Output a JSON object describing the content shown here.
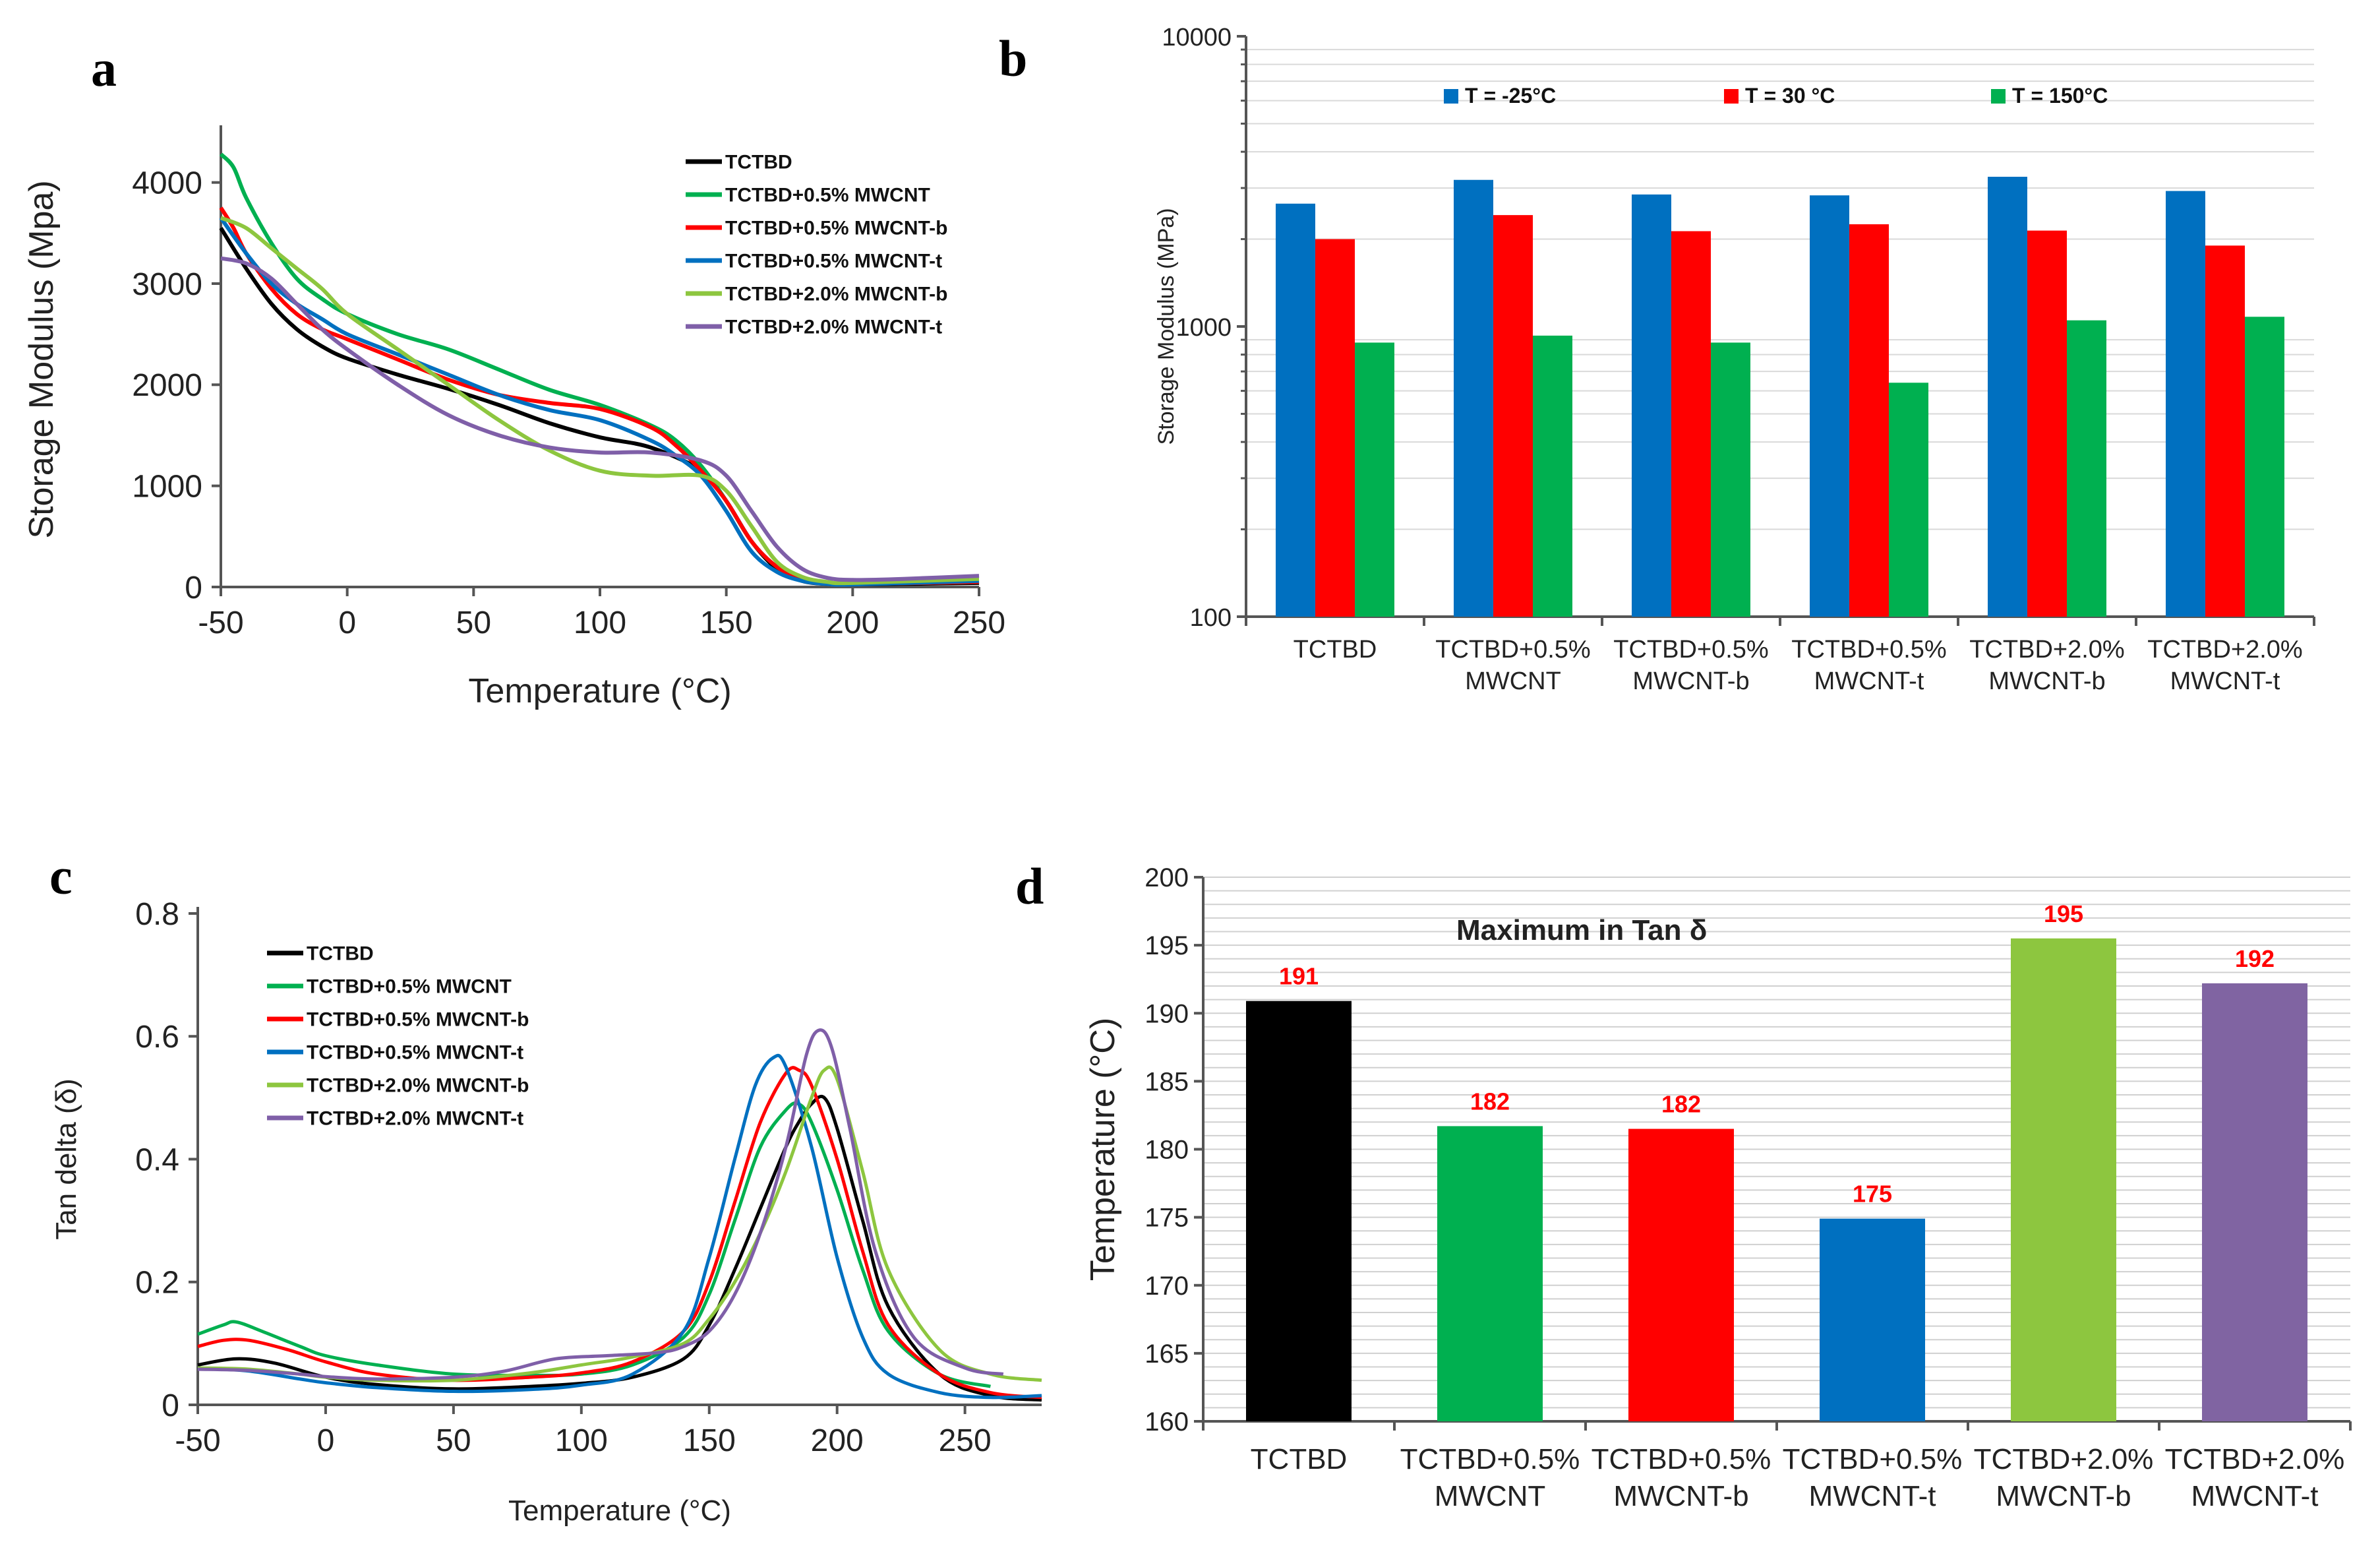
{
  "panels": {
    "a": {
      "label": "a",
      "chart_data": {
        "type": "line",
        "xlabel": "Temperature (°C)",
        "ylabel": "Storage Modulus (Mpa)",
        "xlim": [
          -50,
          250
        ],
        "ylim": [
          0,
          4500
        ],
        "xticks": [
          "-50",
          "0",
          "50",
          "100",
          "150",
          "200",
          "250"
        ],
        "yticks": [
          "0",
          "1000",
          "2000",
          "3000",
          "4000"
        ],
        "series": [
          {
            "name": "TCTBD",
            "color": "#000000",
            "x": [
              -50,
              -40,
              -30,
              -20,
              -10,
              0,
              20,
              40,
              60,
              80,
              100,
              120,
              140,
              150,
              160,
              170,
              180,
              190,
              200,
              250
            ],
            "y": [
              3550,
              3150,
              2800,
              2550,
              2380,
              2260,
              2100,
              1960,
              1800,
              1620,
              1480,
              1380,
              1150,
              850,
              450,
              180,
              60,
              30,
              25,
              40
            ]
          },
          {
            "name": "TCTBD+0.5% MWCNT",
            "color": "#00b050",
            "x": [
              -50,
              -45,
              -40,
              -30,
              -20,
              -10,
              0,
              20,
              40,
              60,
              80,
              100,
              120,
              130,
              140,
              150,
              160,
              170,
              180,
              190,
              200,
              250
            ],
            "y": [
              4280,
              4150,
              3850,
              3400,
              3050,
              2850,
              2700,
              2500,
              2350,
              2150,
              1950,
              1800,
              1600,
              1450,
              1200,
              850,
              450,
              200,
              80,
              40,
              30,
              50
            ]
          },
          {
            "name": "TCTBD+0.5% MWCNT-b",
            "color": "#ff0000",
            "x": [
              -50,
              -45,
              -40,
              -30,
              -20,
              -10,
              0,
              20,
              40,
              60,
              80,
              100,
              120,
              130,
              140,
              150,
              160,
              170,
              180,
              190,
              200,
              250
            ],
            "y": [
              3750,
              3550,
              3300,
              2950,
              2700,
              2550,
              2450,
              2250,
              2050,
              1900,
              1820,
              1760,
              1580,
              1400,
              1150,
              850,
              450,
              200,
              80,
              40,
              30,
              50
            ]
          },
          {
            "name": "TCTBD+0.5% MWCNT-t",
            "color": "#0070c0",
            "x": [
              -50,
              -40,
              -30,
              -20,
              -10,
              0,
              20,
              40,
              60,
              80,
              100,
              120,
              130,
              140,
              150,
              160,
              170,
              180,
              190,
              200,
              250
            ],
            "y": [
              3650,
              3300,
              3000,
              2800,
              2650,
              2500,
              2300,
              2100,
              1900,
              1750,
              1650,
              1450,
              1300,
              1100,
              750,
              350,
              150,
              60,
              30,
              25,
              60
            ]
          },
          {
            "name": "TCTBD+2.0% MWCNT-b",
            "color": "#8dc63f",
            "x": [
              -50,
              -40,
              -30,
              -20,
              -10,
              0,
              20,
              40,
              60,
              80,
              100,
              120,
              140,
              150,
              160,
              170,
              180,
              190,
              200,
              250
            ],
            "y": [
              3650,
              3550,
              3350,
              3150,
              2950,
              2700,
              2350,
              2000,
              1650,
              1350,
              1150,
              1100,
              1100,
              950,
              600,
              250,
              100,
              50,
              40,
              80
            ]
          },
          {
            "name": "TCTBD+2.0% MWCNT-t",
            "color": "#7f5fa8",
            "x": [
              -50,
              -40,
              -30,
              -20,
              -10,
              0,
              20,
              40,
              60,
              80,
              100,
              120,
              140,
              150,
              160,
              170,
              180,
              190,
              200,
              220,
              250
            ],
            "y": [
              3250,
              3200,
              3050,
              2800,
              2550,
              2350,
              2000,
              1700,
              1500,
              1380,
              1330,
              1330,
              1250,
              1100,
              750,
              400,
              180,
              90,
              70,
              80,
              110
            ]
          }
        ]
      }
    },
    "b": {
      "label": "b",
      "chart_data": {
        "type": "bar",
        "yscale": "log",
        "ylabel": "Storage Modulus (MPa)",
        "ylim": [
          100,
          10000
        ],
        "yticks": [
          "100",
          "1000",
          "10000"
        ],
        "categories": [
          [
            "TCTBD"
          ],
          [
            "TCTBD+0.5%",
            "MWCNT"
          ],
          [
            "TCTBD+0.5%",
            "MWCNT-b"
          ],
          [
            "TCTBD+0.5%",
            "MWCNT-t"
          ],
          [
            "TCTBD+2.0%",
            "MWCNT-b"
          ],
          [
            "TCTBD+2.0%",
            "MWCNT-t"
          ]
        ],
        "series": [
          {
            "name": "T = -25°C",
            "color": "#0070c0",
            "values": [
              2650,
              3200,
              2850,
              2830,
              3280,
              2930
            ]
          },
          {
            "name": "T = 30 °C",
            "color": "#ff0000",
            "values": [
              2000,
              2420,
              2130,
              2250,
              2140,
              1900
            ]
          },
          {
            "name": "T = 150°C",
            "color": "#00b050",
            "values": [
              880,
              930,
              880,
              640,
              1050,
              1080
            ]
          }
        ]
      }
    },
    "c": {
      "label": "c",
      "chart_data": {
        "type": "line",
        "xlabel": "Temperature (°C)",
        "ylabel": "Tan delta (δ)",
        "xlim": [
          -50,
          280
        ],
        "ylim": [
          0,
          0.8
        ],
        "xticks": [
          "-50",
          "0",
          "50",
          "100",
          "150",
          "200",
          "250"
        ],
        "yticks": [
          "0",
          "0.2",
          "0.4",
          "0.6",
          "0.8"
        ],
        "series": [
          {
            "name": "TCTBD",
            "color": "#000000",
            "x": [
              -50,
              -35,
              -20,
              0,
              20,
              50,
              80,
              100,
              120,
              140,
              150,
              160,
              170,
              180,
              185,
              190,
              195,
              200,
              210,
              220,
              240,
              260,
              280
            ],
            "y": [
              0.065,
              0.075,
              0.068,
              0.045,
              0.033,
              0.026,
              0.03,
              0.035,
              0.045,
              0.075,
              0.13,
              0.22,
              0.32,
              0.42,
              0.46,
              0.49,
              0.5,
              0.45,
              0.3,
              0.16,
              0.05,
              0.015,
              0.008
            ]
          },
          {
            "name": "TCTBD+0.5% MWCNT",
            "color": "#00b050",
            "x": [
              -50,
              -40,
              -35,
              -25,
              -10,
              0,
              20,
              50,
              80,
              100,
              120,
              140,
              150,
              160,
              170,
              180,
              185,
              190,
              200,
              210,
              220,
              240,
              260
            ],
            "y": [
              0.115,
              0.13,
              0.135,
              0.12,
              0.095,
              0.08,
              0.065,
              0.05,
              0.048,
              0.05,
              0.065,
              0.11,
              0.18,
              0.3,
              0.42,
              0.48,
              0.49,
              0.46,
              0.35,
              0.22,
              0.12,
              0.05,
              0.03
            ]
          },
          {
            "name": "TCTBD+0.5% MWCNT-b",
            "color": "#ff0000",
            "x": [
              -50,
              -40,
              -30,
              -15,
              0,
              20,
              50,
              80,
              100,
              120,
              140,
              150,
              160,
              170,
              180,
              185,
              190,
              200,
              210,
              220,
              240,
              260,
              280
            ],
            "y": [
              0.095,
              0.105,
              0.105,
              0.09,
              0.07,
              0.05,
              0.04,
              0.045,
              0.052,
              0.07,
              0.12,
              0.2,
              0.33,
              0.46,
              0.54,
              0.545,
              0.52,
              0.4,
              0.25,
              0.13,
              0.05,
              0.02,
              0.012
            ]
          },
          {
            "name": "TCTBD+0.5% MWCNT-t",
            "color": "#0070c0",
            "x": [
              -50,
              -30,
              -10,
              0,
              20,
              50,
              80,
              100,
              120,
              140,
              150,
              160,
              168,
              175,
              180,
              190,
              200,
              210,
              220,
              240,
              260,
              280
            ],
            "y": [
              0.06,
              0.055,
              0.042,
              0.036,
              0.028,
              0.022,
              0.025,
              0.032,
              0.05,
              0.12,
              0.24,
              0.4,
              0.52,
              0.565,
              0.55,
              0.42,
              0.24,
              0.11,
              0.05,
              0.02,
              0.012,
              0.015
            ]
          },
          {
            "name": "TCTBD+2.0% MWCNT-b",
            "color": "#8dc63f",
            "x": [
              -50,
              -30,
              -10,
              0,
              20,
              50,
              80,
              100,
              120,
              140,
              150,
              160,
              170,
              180,
              190,
              195,
              200,
              210,
              220,
              240,
              260,
              280
            ],
            "y": [
              0.06,
              0.058,
              0.05,
              0.045,
              0.04,
              0.04,
              0.052,
              0.065,
              0.078,
              0.1,
              0.14,
              0.2,
              0.28,
              0.38,
              0.5,
              0.545,
              0.53,
              0.38,
              0.22,
              0.09,
              0.05,
              0.04
            ]
          },
          {
            "name": "TCTBD+2.0% MWCNT-t",
            "color": "#7f5fa8",
            "x": [
              -50,
              -30,
              -10,
              0,
              20,
              50,
              70,
              90,
              110,
              130,
              140,
              150,
              160,
              170,
              180,
              188,
              193,
              198,
              205,
              215,
              230,
              250,
              265
            ],
            "y": [
              0.058,
              0.056,
              0.05,
              0.046,
              0.042,
              0.045,
              0.055,
              0.075,
              0.08,
              0.085,
              0.095,
              0.12,
              0.18,
              0.28,
              0.42,
              0.57,
              0.61,
              0.58,
              0.45,
              0.25,
              0.11,
              0.06,
              0.05
            ]
          }
        ]
      }
    },
    "d": {
      "label": "d",
      "chart_data": {
        "type": "bar",
        "title": "Maximum in Tan δ",
        "ylabel": "Temperature (°C)",
        "ylim": [
          160,
          200
        ],
        "yticks": [
          "160",
          "165",
          "170",
          "175",
          "180",
          "185",
          "190",
          "195",
          "200"
        ],
        "categories": [
          [
            "TCTBD"
          ],
          [
            "TCTBD+0.5%",
            "MWCNT"
          ],
          [
            "TCTBD+0.5%",
            "MWCNT-b"
          ],
          [
            "TCTBD+0.5%",
            "MWCNT-t"
          ],
          [
            "TCTBD+2.0%",
            "MWCNT-b"
          ],
          [
            "TCTBD+2.0%",
            "MWCNT-t"
          ]
        ],
        "values": [
          190.9,
          181.7,
          181.5,
          174.9,
          195.5,
          192.2
        ],
        "labels": [
          "191",
          "182",
          "182",
          "175",
          "195",
          "192"
        ],
        "colors": [
          "#000000",
          "#00b050",
          "#ff0000",
          "#0070c0",
          "#8dc63f",
          "#8064a2"
        ],
        "label_color": "#ff0000"
      }
    }
  }
}
